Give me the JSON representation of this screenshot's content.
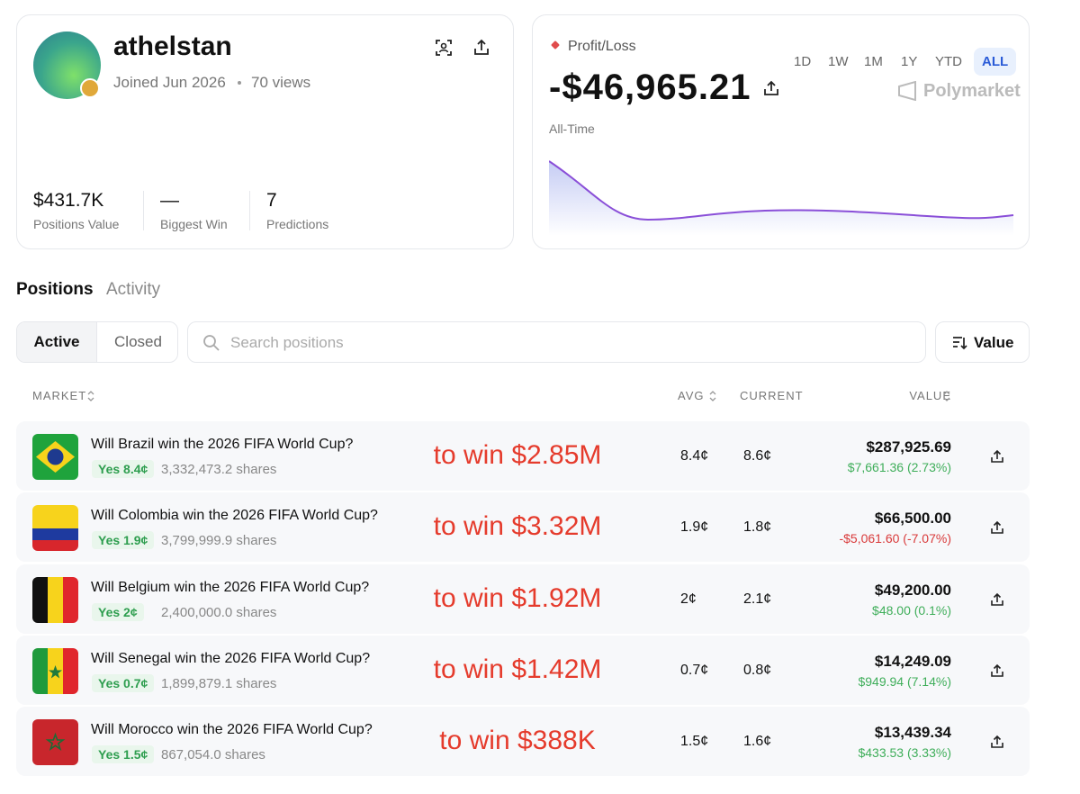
{
  "profile": {
    "username": "athelstan",
    "joined": "Joined Jun 2026",
    "views": "70 views",
    "stats": [
      {
        "value": "$431.7K",
        "label": "Positions Value"
      },
      {
        "value": "—",
        "label": "Biggest Win"
      },
      {
        "value": "7",
        "label": "Predictions"
      }
    ]
  },
  "pnl": {
    "label": "Profit/Loss",
    "ranges": [
      "1D",
      "1W",
      "1M",
      "1Y",
      "YTD",
      "ALL"
    ],
    "selected_range": "ALL",
    "amount": "-$46,965.21",
    "brand": "Polymarket",
    "period": "All-Time"
  },
  "tabs": [
    "Positions",
    "Activity"
  ],
  "selected_tab": "Positions",
  "filters": [
    "Active",
    "Closed"
  ],
  "selected_filter": "Active",
  "search_placeholder": "Search positions",
  "sort": "Value",
  "table": {
    "headers": [
      "MARKET",
      "AVG",
      "CURRENT",
      "VALUE"
    ],
    "rows": [
      {
        "market": "Will Brazil win the 2026 FIFA World Cup?",
        "outcome": "Yes 8.4¢",
        "shares": "3,332,473.2 shares",
        "annotation": "to win $2.85M",
        "avg": "8.4¢",
        "current": "8.6¢",
        "value": "$287,925.69",
        "change": "$7,661.36 (2.73%)"
      },
      {
        "market": "Will Colombia win the 2026 FIFA World Cup?",
        "outcome": "Yes 1.9¢",
        "shares": "3,799,999.9 shares",
        "annotation": "to win $3.32M",
        "avg": "1.9¢",
        "current": "1.8¢",
        "value": "$66,500.00",
        "change": "-$5,061.60 (-7.07%)"
      },
      {
        "market": "Will Belgium win the 2026 FIFA World Cup?",
        "outcome": "Yes 2¢",
        "shares": "2,400,000.0 shares",
        "annotation": "to win $1.92M",
        "avg": "2¢",
        "current": "2.1¢",
        "value": "$49,200.00",
        "change": "$48.00 (0.1%)"
      },
      {
        "market": "Will Senegal win the 2026 FIFA World Cup?",
        "outcome": "Yes 0.7¢",
        "shares": "1,899,879.1 shares",
        "annotation": "to win $1.42M",
        "avg": "0.7¢",
        "current": "0.8¢",
        "value": "$14,249.09",
        "change": "$949.94 (7.14%)"
      },
      {
        "market": "Will Morocco win the 2026 FIFA World Cup?",
        "outcome": "Yes 1.5¢",
        "shares": "867,054.0 shares",
        "annotation": "to win $388K",
        "avg": "1.5¢",
        "current": "1.6¢",
        "value": "$13,439.34",
        "change": "$433.53 (3.33%)"
      }
    ]
  }
}
